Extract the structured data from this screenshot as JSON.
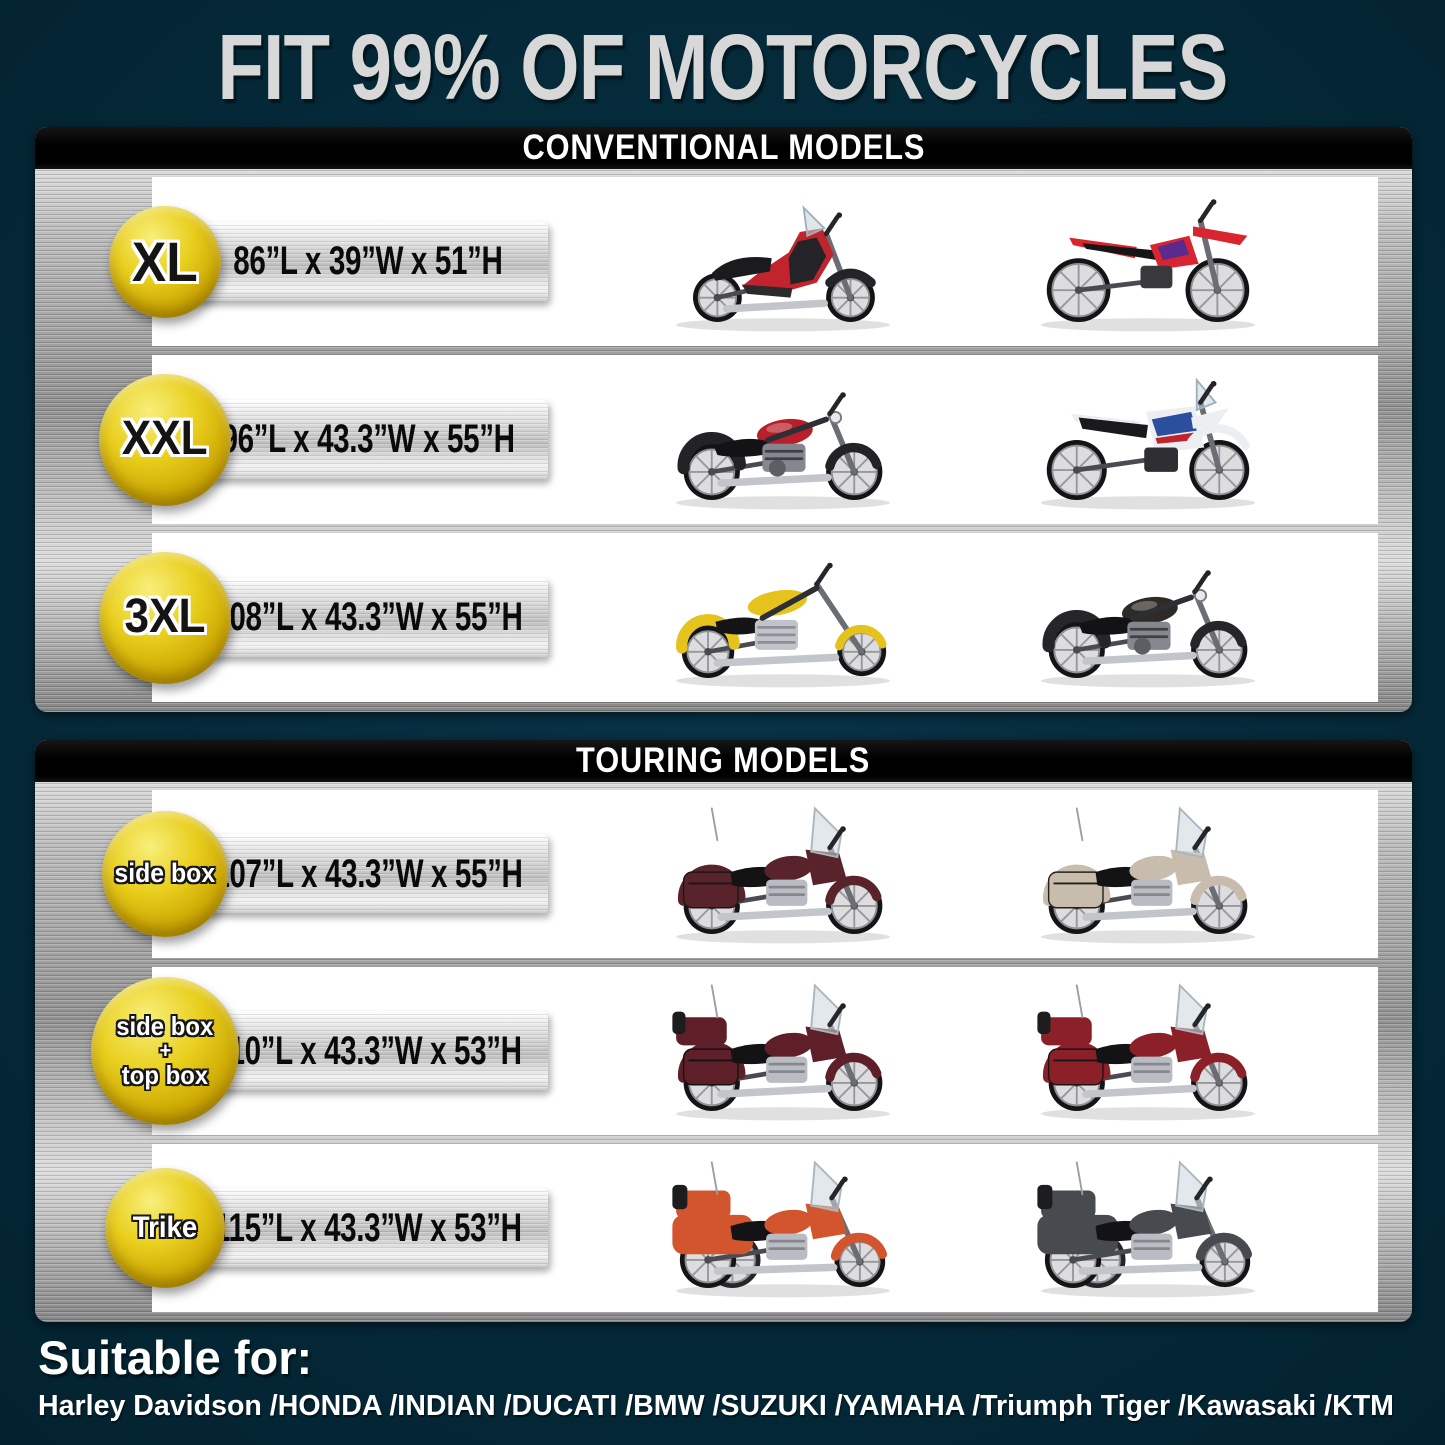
{
  "page": {
    "title": "FIT 99% OF MOTORCYCLES",
    "colors": {
      "background": "#052a3a",
      "badge_yellow": "#e9cf1e",
      "header_bar": "#000000",
      "panel_metal": "#b5b5b5",
      "row_background": "#ffffff",
      "size_text": "#0a0a0a",
      "title_text": "#d8d8d8"
    }
  },
  "sections": [
    {
      "header": "CONVENTIONAL MODELS",
      "rows": [
        {
          "badge": [
            "XL"
          ],
          "size": "86”L x 39”W x 51”H",
          "bikes": [
            {
              "type": "scooter",
              "label": "red adventure scooter",
              "body": "#c2242e",
              "tank": "#c2242e",
              "accent": "#242428"
            },
            {
              "type": "dirt",
              "label": "red dirt bike",
              "body": "#d9252f",
              "accent": "#5a2a8f"
            }
          ]
        },
        {
          "badge": [
            "XXL"
          ],
          "size": "96”L x 43.3”W x 55”H",
          "bikes": [
            {
              "type": "cruiser",
              "label": "black cruiser with red tank",
              "body": "#232327",
              "tank": "#b7202a",
              "accent": "#141416"
            },
            {
              "type": "adv",
              "label": "white and blue adventure bike",
              "body": "#eceff2",
              "tank": "#2b4f9e",
              "accent": "#c0232b"
            }
          ]
        },
        {
          "badge": [
            "3XL"
          ],
          "size": "108”L x 43.3”W x 55”H",
          "bikes": [
            {
              "type": "chopper",
              "label": "yellow chopper",
              "body": "#e6c31c",
              "tank": "#e6c31c",
              "accent": "#17171a"
            },
            {
              "type": "cruiser",
              "label": "black cruiser",
              "body": "#26262a",
              "tank": "#2e2a26",
              "accent": "#101012"
            }
          ]
        }
      ]
    },
    {
      "header": "TOURING MODELS",
      "rows": [
        {
          "badge": [
            "side box"
          ],
          "size": "107”L x 43.3”W x 55”H",
          "bikes": [
            {
              "type": "touring",
              "label": "maroon touring bike with windshield and side boxes",
              "body": "#59232b",
              "accent": "#191719"
            },
            {
              "type": "touring",
              "label": "tan touring bagger",
              "body": "#c8bdac",
              "accent": "#232019"
            }
          ]
        },
        {
          "badge": [
            "side box",
            "+",
            "top box"
          ],
          "size": "110”L x 43.3”W x 53”H",
          "bikes": [
            {
              "type": "tourer",
              "label": "maroon full-dress tourer with top box",
              "body": "#5e1f28",
              "accent": "#141214"
            },
            {
              "type": "tourer",
              "label": "dark red touring motorcycle with top box",
              "body": "#8c2028",
              "accent": "#1a1416"
            }
          ]
        },
        {
          "badge": [
            "Trike"
          ],
          "size": "115”L x 43.3”W x 53”H",
          "bikes": [
            {
              "type": "trike",
              "label": "orange trike",
              "body": "#d2552e",
              "accent": "#20201f"
            },
            {
              "type": "trike",
              "label": "dark gray trike",
              "body": "#474a4f",
              "accent": "#1c1d1f"
            }
          ]
        }
      ]
    }
  ],
  "footer": {
    "title": "Suitable for:",
    "brands": "Harley Davidson /HONDA /INDIAN /DUCATI /BMW /SUZUKI /YAMAHA /Triumph Tiger /Kawasaki /KTM"
  }
}
